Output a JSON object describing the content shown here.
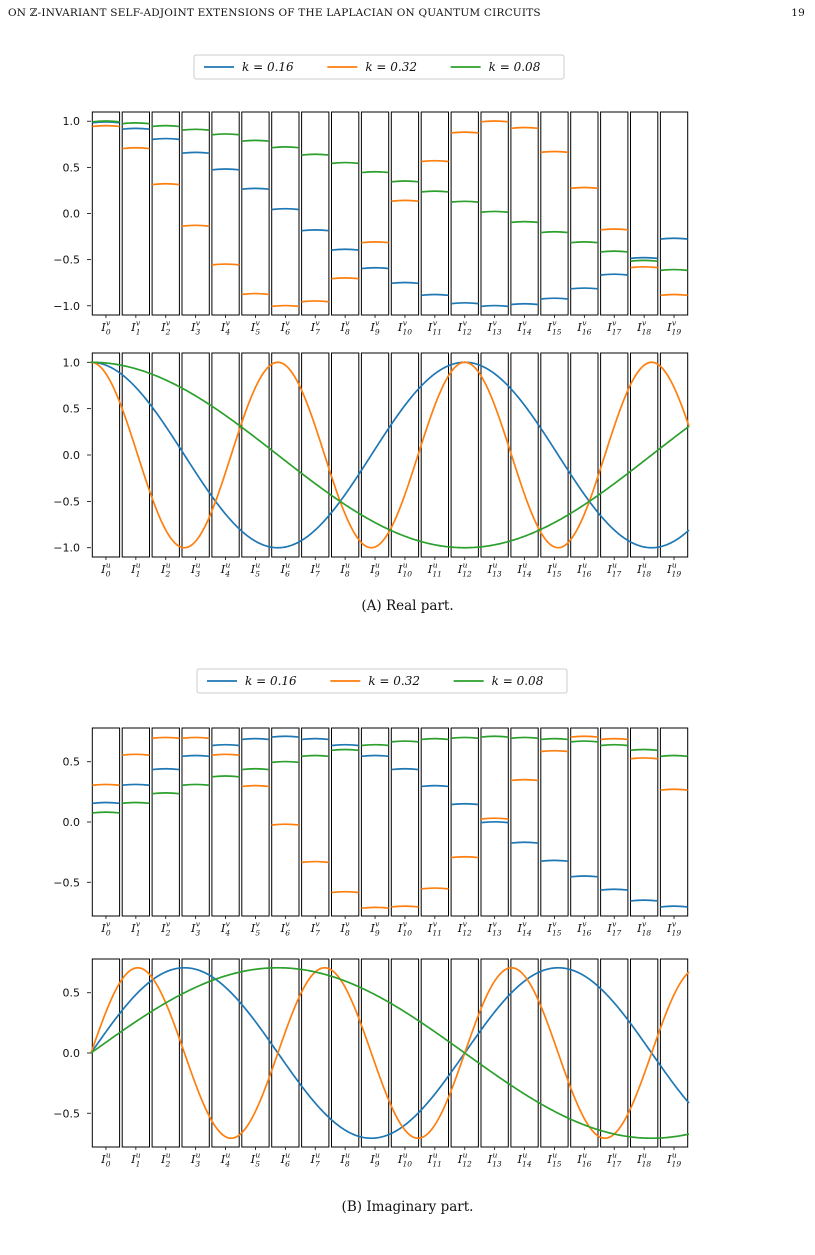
{
  "header": {
    "title": "ON ℤ-INVARIANT SELF-ADJOINT EXTENSIONS OF THE LAPLACIAN ON QUANTUM CIRCUITS",
    "page_number": "19"
  },
  "colors": {
    "k016": "#1f77b4",
    "k032": "#ff7f0e",
    "k008": "#2ca02c",
    "frame": "#000000"
  },
  "figures": [
    {
      "id": "a",
      "caption_label": "(A)",
      "caption_text": "Real part."
    },
    {
      "id": "b",
      "caption_label": "(B)",
      "caption_text": "Imaginary part."
    }
  ],
  "chart_data": [
    {
      "type": "line",
      "panel": "A-top",
      "legend": [
        "k = 0.16",
        "k = 0.32",
        "k = 0.08"
      ],
      "legend_placement": "top-center",
      "categories": [
        "I_0^v",
        "I_1^v",
        "I_2^v",
        "I_3^v",
        "I_4^v",
        "I_5^v",
        "I_6^v",
        "I_7^v",
        "I_8^v",
        "I_9^v",
        "I_10^v",
        "I_11^v",
        "I_12^v",
        "I_13^v",
        "I_14^v",
        "I_15^v",
        "I_16^v",
        "I_17^v",
        "I_18^v",
        "I_19^v"
      ],
      "yticks": [
        -1.0,
        -0.5,
        0.0,
        0.5,
        1.0
      ],
      "ytick_labels": [
        "−1.0",
        "−0.5",
        "0.0",
        "0.5",
        "1.0"
      ],
      "ylim": [
        -1.1,
        1.1
      ],
      "series": [
        {
          "name": "k = 0.16",
          "values": [
            0.99,
            0.92,
            0.81,
            0.66,
            0.48,
            0.27,
            0.05,
            -0.18,
            -0.39,
            -0.59,
            -0.75,
            -0.88,
            -0.97,
            -1.0,
            -0.98,
            -0.92,
            -0.81,
            -0.66,
            -0.48,
            -0.27
          ]
        },
        {
          "name": "k = 0.32",
          "values": [
            0.95,
            0.71,
            0.32,
            -0.13,
            -0.55,
            -0.87,
            -1.0,
            -0.95,
            -0.7,
            -0.31,
            0.14,
            0.57,
            0.88,
            1.0,
            0.93,
            0.67,
            0.28,
            -0.17,
            -0.58,
            -0.88
          ]
        },
        {
          "name": "k = 0.08",
          "values": [
            1.0,
            0.98,
            0.95,
            0.91,
            0.86,
            0.79,
            0.72,
            0.64,
            0.55,
            0.45,
            0.35,
            0.24,
            0.13,
            0.02,
            -0.09,
            -0.2,
            -0.31,
            -0.41,
            -0.51,
            -0.61
          ]
        }
      ]
    },
    {
      "type": "line",
      "panel": "A-bottom",
      "categories": [
        "I_0^u",
        "I_1^u",
        "I_2^u",
        "I_3^u",
        "I_4^u",
        "I_5^u",
        "I_6^u",
        "I_7^u",
        "I_8^u",
        "I_9^u",
        "I_10^u",
        "I_11^u",
        "I_12^u",
        "I_13^u",
        "I_14^u",
        "I_15^u",
        "I_16^u",
        "I_17^u",
        "I_18^u",
        "I_19^u"
      ],
      "yticks": [
        -1.0,
        -0.5,
        0.0,
        0.5,
        1.0
      ],
      "ytick_labels": [
        "−1.0",
        "−0.5",
        "0.0",
        "0.5",
        "1.0"
      ],
      "ylim": [
        -1.1,
        1.1
      ],
      "x_range": [
        0,
        20
      ],
      "curves": [
        {
          "name": "k = 0.16",
          "func": "cos",
          "k": 0.16
        },
        {
          "name": "k = 0.32",
          "func": "cos",
          "k": 0.32
        },
        {
          "name": "k = 0.08",
          "func": "cos",
          "k": 0.08
        }
      ]
    },
    {
      "type": "line",
      "panel": "B-top",
      "legend": [
        "k = 0.16",
        "k = 0.32",
        "k = 0.08"
      ],
      "legend_placement": "top-center",
      "categories": [
        "I_0^v",
        "I_1^v",
        "I_2^v",
        "I_3^v",
        "I_4^v",
        "I_5^v",
        "I_6^v",
        "I_7^v",
        "I_8^v",
        "I_9^v",
        "I_10^v",
        "I_11^v",
        "I_12^v",
        "I_13^v",
        "I_14^v",
        "I_15^v",
        "I_16^v",
        "I_17^v",
        "I_18^v",
        "I_19^v"
      ],
      "yticks": [
        -0.5,
        0.0,
        0.5
      ],
      "ytick_labels": [
        "−0.5",
        "0.0",
        "0.5"
      ],
      "ylim": [
        -0.78,
        0.78
      ],
      "series": [
        {
          "name": "k = 0.16",
          "values": [
            0.16,
            0.31,
            0.44,
            0.55,
            0.64,
            0.69,
            0.71,
            0.69,
            0.64,
            0.55,
            0.44,
            0.3,
            0.15,
            0.0,
            -0.17,
            -0.32,
            -0.45,
            -0.56,
            -0.65,
            -0.7
          ]
        },
        {
          "name": "k = 0.32",
          "values": [
            0.31,
            0.56,
            0.7,
            0.7,
            0.56,
            0.3,
            -0.02,
            -0.33,
            -0.58,
            -0.71,
            -0.7,
            -0.55,
            -0.29,
            0.03,
            0.35,
            0.59,
            0.71,
            0.69,
            0.53,
            0.27
          ]
        },
        {
          "name": "k = 0.08",
          "values": [
            0.08,
            0.16,
            0.24,
            0.31,
            0.38,
            0.44,
            0.5,
            0.55,
            0.6,
            0.64,
            0.67,
            0.69,
            0.7,
            0.71,
            0.7,
            0.69,
            0.67,
            0.64,
            0.6,
            0.55
          ]
        }
      ]
    },
    {
      "type": "line",
      "panel": "B-bottom",
      "categories": [
        "I_0^u",
        "I_1^u",
        "I_2^u",
        "I_3^u",
        "I_4^u",
        "I_5^u",
        "I_6^u",
        "I_7^u",
        "I_8^u",
        "I_9^u",
        "I_10^u",
        "I_11^u",
        "I_12^u",
        "I_13^u",
        "I_14^u",
        "I_15^u",
        "I_16^u",
        "I_17^u",
        "I_18^u",
        "I_19^u"
      ],
      "yticks": [
        -0.5,
        0.0,
        0.5
      ],
      "ytick_labels": [
        "−0.5",
        "0.0",
        "0.5"
      ],
      "ylim": [
        -0.78,
        0.78
      ],
      "x_range": [
        0,
        20
      ],
      "curves": [
        {
          "name": "k = 0.16",
          "func": "halfsin",
          "k": 0.16
        },
        {
          "name": "k = 0.32",
          "func": "halfsin",
          "k": 0.32
        },
        {
          "name": "k = 0.08",
          "func": "halfsin",
          "k": 0.08
        }
      ]
    }
  ]
}
